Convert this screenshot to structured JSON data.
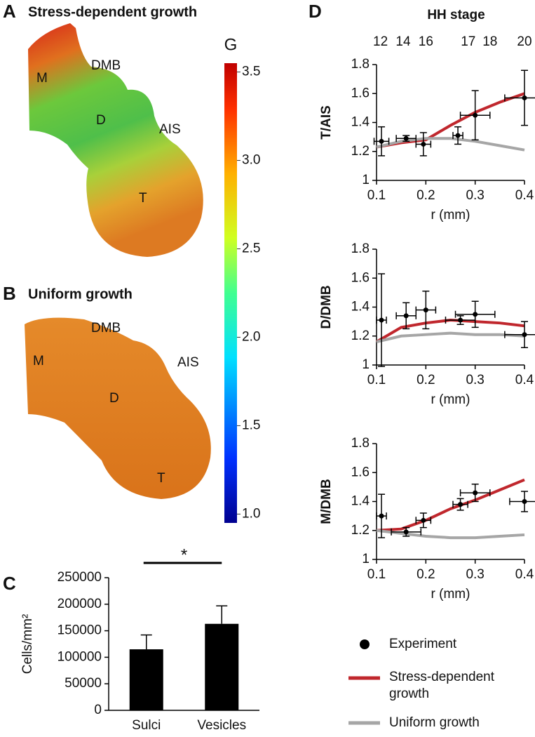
{
  "panel_labels": [
    "A",
    "B",
    "C",
    "D"
  ],
  "shapes": [
    {
      "title": "Stress-dependent growth",
      "labels": [
        "M",
        "DMB",
        "D",
        "AIS",
        "T"
      ]
    },
    {
      "title": "Uniform growth",
      "labels": [
        "M",
        "DMB",
        "D",
        "AIS",
        "T"
      ]
    }
  ],
  "colorbar": {
    "title": "G",
    "lim": [
      0.95,
      3.55
    ],
    "ticks": [
      {
        "value": 1,
        "label": "1.0"
      },
      1.5,
      {
        "value": 2,
        "label": "2.0"
      },
      2.5,
      {
        "value": 3,
        "label": "3.0"
      },
      3.5
    ]
  },
  "chart_data": [
    {
      "type": "bar",
      "ylabel": "Cells/mm²",
      "categories": [
        "Sulci",
        "Vesicles"
      ],
      "values": [
        115000,
        163000
      ],
      "errors": [
        27000,
        34000
      ],
      "color": "#000000",
      "ylim": [
        0,
        250000
      ],
      "yticks": [
        0,
        50000,
        100000,
        150000,
        200000,
        250000
      ],
      "annotation": "*"
    },
    {
      "type": "line",
      "ylabel": "T/AIS",
      "xlabel": "r (mm)",
      "x2label": "HH stage",
      "xlim": [
        0.1,
        0.4
      ],
      "ylim": [
        1,
        1.8
      ],
      "xticks": [
        0.1,
        0.2,
        0.3,
        0.4
      ],
      "yticks": [
        1,
        1.2,
        1.4,
        1.6,
        1.8
      ],
      "x2ticks": [
        {
          "value": 0.108,
          "label": "12"
        },
        {
          "value": 0.154,
          "label": "14"
        },
        {
          "value": 0.2,
          "label": "16"
        },
        {
          "value": 0.286,
          "label": "17"
        },
        {
          "value": 0.33,
          "label": "18"
        },
        {
          "value": 0.4,
          "label": "20"
        }
      ],
      "series": [
        {
          "name": "Experiment",
          "type": "scatter",
          "color": "#000000",
          "x": [
            0.11,
            0.16,
            0.195,
            0.265,
            0.3,
            0.4
          ],
          "values": [
            1.27,
            1.29,
            1.25,
            1.31,
            1.45,
            1.57
          ],
          "xerr": [
            0.015,
            0.02,
            0.015,
            0.01,
            0.03,
            0.04
          ],
          "yerr": [
            0.1,
            0.02,
            0.08,
            0.06,
            0.17,
            0.19
          ]
        },
        {
          "name": "Stress-dependent growth",
          "type": "line",
          "color": "#c0272d",
          "x": [
            0.1,
            0.15,
            0.2,
            0.25,
            0.3,
            0.35,
            0.4
          ],
          "values": [
            1.23,
            1.26,
            1.28,
            1.38,
            1.47,
            1.54,
            1.6
          ]
        },
        {
          "name": "Uniform growth",
          "type": "line",
          "color": "#a6a6a6",
          "x": [
            0.1,
            0.15,
            0.2,
            0.25,
            0.3,
            0.35,
            0.4
          ],
          "values": [
            1.23,
            1.27,
            1.29,
            1.29,
            1.27,
            1.24,
            1.21
          ]
        }
      ]
    },
    {
      "type": "line",
      "ylabel": "D/DMB",
      "xlabel": "r (mm)",
      "xlim": [
        0.1,
        0.4
      ],
      "ylim": [
        1,
        1.8
      ],
      "xticks": [
        0.1,
        0.2,
        0.3,
        0.4
      ],
      "yticks": [
        1,
        1.2,
        1.4,
        1.6,
        1.8
      ],
      "series": [
        {
          "type": "scatter",
          "color": "#000000",
          "x": [
            0.11,
            0.16,
            0.2,
            0.27,
            0.3,
            0.4
          ],
          "values": [
            1.31,
            1.34,
            1.38,
            1.31,
            1.35,
            1.21
          ],
          "xerr": [
            0.01,
            0.02,
            0.02,
            0.03,
            0.04,
            0.04
          ],
          "yerr": [
            0.32,
            0.09,
            0.13,
            0.03,
            0.09,
            0.09
          ]
        },
        {
          "type": "line",
          "color": "#c0272d",
          "x": [
            0.1,
            0.15,
            0.2,
            0.25,
            0.3,
            0.35,
            0.4
          ],
          "values": [
            1.16,
            1.26,
            1.29,
            1.31,
            1.3,
            1.29,
            1.27
          ]
        },
        {
          "type": "line",
          "color": "#a6a6a6",
          "x": [
            0.1,
            0.15,
            0.2,
            0.25,
            0.3,
            0.35,
            0.4
          ],
          "values": [
            1.16,
            1.2,
            1.21,
            1.22,
            1.21,
            1.21,
            1.2
          ]
        }
      ]
    },
    {
      "type": "line",
      "ylabel": "M/DMB",
      "xlabel": "r (mm)",
      "xlim": [
        0.1,
        0.4
      ],
      "ylim": [
        1,
        1.8
      ],
      "xticks": [
        0.1,
        0.2,
        0.3,
        0.4
      ],
      "yticks": [
        1,
        1.2,
        1.4,
        1.6,
        1.8
      ],
      "series": [
        {
          "type": "scatter",
          "color": "#000000",
          "x": [
            0.11,
            0.16,
            0.195,
            0.27,
            0.3,
            0.4
          ],
          "values": [
            1.3,
            1.19,
            1.27,
            1.38,
            1.46,
            1.4
          ],
          "xerr": [
            0.01,
            0.03,
            0.015,
            0.015,
            0.03,
            0.03
          ],
          "yerr": [
            0.15,
            0.03,
            0.05,
            0.04,
            0.06,
            0.07
          ]
        },
        {
          "type": "line",
          "color": "#c0272d",
          "x": [
            0.1,
            0.15,
            0.2,
            0.25,
            0.3,
            0.35,
            0.4
          ],
          "values": [
            1.2,
            1.21,
            1.27,
            1.35,
            1.41,
            1.48,
            1.55
          ]
        },
        {
          "type": "line",
          "color": "#a6a6a6",
          "x": [
            0.1,
            0.15,
            0.2,
            0.25,
            0.3,
            0.35,
            0.4
          ],
          "values": [
            1.2,
            1.18,
            1.16,
            1.15,
            1.15,
            1.16,
            1.17
          ]
        }
      ]
    }
  ]
}
